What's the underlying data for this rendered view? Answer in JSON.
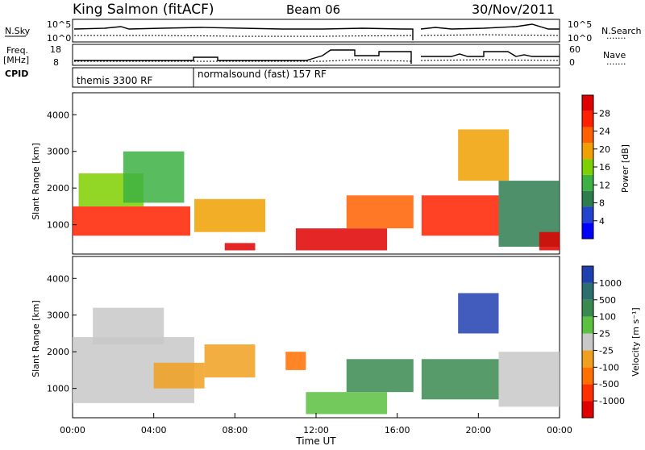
{
  "header": {
    "station": "King Salmon (fitACF)",
    "beam": "Beam 06",
    "date": "30/Nov/2011"
  },
  "labels": {
    "nsky": "N.Sky",
    "nsearch": "N.Search",
    "freq": "Freq.",
    "freq_unit": "[MHz]",
    "nave": "Nave",
    "cpid": "CPID",
    "cpid_segment_1": "themis 3300 RF",
    "cpid_segment_2": "normalsound (fast) 157 RF",
    "dots": "......."
  },
  "strip_ticks": {
    "noise_left_top": "10^5",
    "noise_left_bottom": "10^0",
    "noise_right_top": "10^5",
    "noise_right_bottom": "10^0",
    "freq_left_top": "18",
    "freq_left_bottom": "8",
    "nave_right_top": "60",
    "nave_right_bottom": "0"
  },
  "colors": {
    "power": [
      "#0000ff",
      "#2244cc",
      "#2e7d4f",
      "#3cb043",
      "#7fd000",
      "#f0a000",
      "#ff6000",
      "#ff2000",
      "#e00000"
    ],
    "velocity": [
      "#2040b0",
      "#2d6e6e",
      "#3a8a50",
      "#5cc040",
      "#c8c8c8",
      "#f0a020",
      "#ff7000",
      "#ff3000",
      "#e00000"
    ]
  },
  "chart_data": [
    {
      "type": "heatmap",
      "panel": "power",
      "ylabel": "Slant Range [km]",
      "y_ticks": [
        "1000",
        "2000",
        "3000",
        "4000"
      ],
      "ylim": [
        200,
        4600
      ],
      "x_ticks": [
        "00:00",
        "04:00",
        "08:00",
        "12:00",
        "16:00",
        "20:00",
        "00:00"
      ],
      "xlim_hours": [
        0,
        24
      ],
      "colorbar_label": "Power [dB]",
      "colorbar_ticks": [
        "4",
        "8",
        "12",
        "16",
        "20",
        "24",
        "28"
      ],
      "regions": [
        {
          "t0": 0.0,
          "t1": 5.8,
          "r0": 700,
          "r1": 1500,
          "level": 7
        },
        {
          "t0": 0.3,
          "t1": 3.5,
          "r0": 1500,
          "r1": 2400,
          "level": 4
        },
        {
          "t0": 2.5,
          "t1": 5.5,
          "r0": 1600,
          "r1": 3000,
          "level": 3
        },
        {
          "t0": 6.0,
          "t1": 9.5,
          "r0": 800,
          "r1": 1700,
          "level": 5
        },
        {
          "t0": 7.5,
          "t1": 9.0,
          "r0": 300,
          "r1": 500,
          "level": 8
        },
        {
          "t0": 11.0,
          "t1": 15.5,
          "r0": 300,
          "r1": 900,
          "level": 8
        },
        {
          "t0": 13.5,
          "t1": 16.8,
          "r0": 900,
          "r1": 1800,
          "level": 6
        },
        {
          "t0": 17.2,
          "t1": 21.0,
          "r0": 700,
          "r1": 1800,
          "level": 7
        },
        {
          "t0": 19.0,
          "t1": 21.5,
          "r0": 2200,
          "r1": 3600,
          "level": 5
        },
        {
          "t0": 21.0,
          "t1": 24.0,
          "r0": 400,
          "r1": 2200,
          "level": 2
        },
        {
          "t0": 23.0,
          "t1": 24.0,
          "r0": 300,
          "r1": 800,
          "level": 8
        }
      ]
    },
    {
      "type": "heatmap",
      "panel": "velocity",
      "ylabel": "Slant Range [km]",
      "y_ticks": [
        "1000",
        "2000",
        "3000",
        "4000"
      ],
      "ylim": [
        200,
        4600
      ],
      "x_ticks": [
        "00:00",
        "04:00",
        "08:00",
        "12:00",
        "16:00",
        "20:00",
        "00:00"
      ],
      "xlim_hours": [
        0,
        24
      ],
      "xlabel": "Time UT",
      "colorbar_label": "Velocity [m s⁻¹]",
      "colorbar_ticks": [
        "1000",
        "500",
        "100",
        "25",
        "-25",
        "-100",
        "-500",
        "-1000"
      ],
      "regions": [
        {
          "t0": 0.0,
          "t1": 6.0,
          "r0": 600,
          "r1": 2400,
          "level": 4
        },
        {
          "t0": 1.0,
          "t1": 4.5,
          "r0": 2200,
          "r1": 3200,
          "level": 4
        },
        {
          "t0": 4.0,
          "t1": 6.5,
          "r0": 1000,
          "r1": 1700,
          "level": 5
        },
        {
          "t0": 6.5,
          "t1": 9.0,
          "r0": 1300,
          "r1": 2200,
          "level": 5
        },
        {
          "t0": 10.5,
          "t1": 11.5,
          "r0": 1500,
          "r1": 2000,
          "level": 6
        },
        {
          "t0": 11.5,
          "t1": 15.5,
          "r0": 300,
          "r1": 900,
          "level": 3
        },
        {
          "t0": 13.5,
          "t1": 16.8,
          "r0": 900,
          "r1": 1800,
          "level": 2
        },
        {
          "t0": 17.2,
          "t1": 21.0,
          "r0": 700,
          "r1": 1800,
          "level": 2
        },
        {
          "t0": 19.0,
          "t1": 21.0,
          "r0": 2500,
          "r1": 3600,
          "level": 0
        },
        {
          "t0": 21.0,
          "t1": 24.0,
          "r0": 500,
          "r1": 2000,
          "level": 4
        }
      ]
    }
  ]
}
